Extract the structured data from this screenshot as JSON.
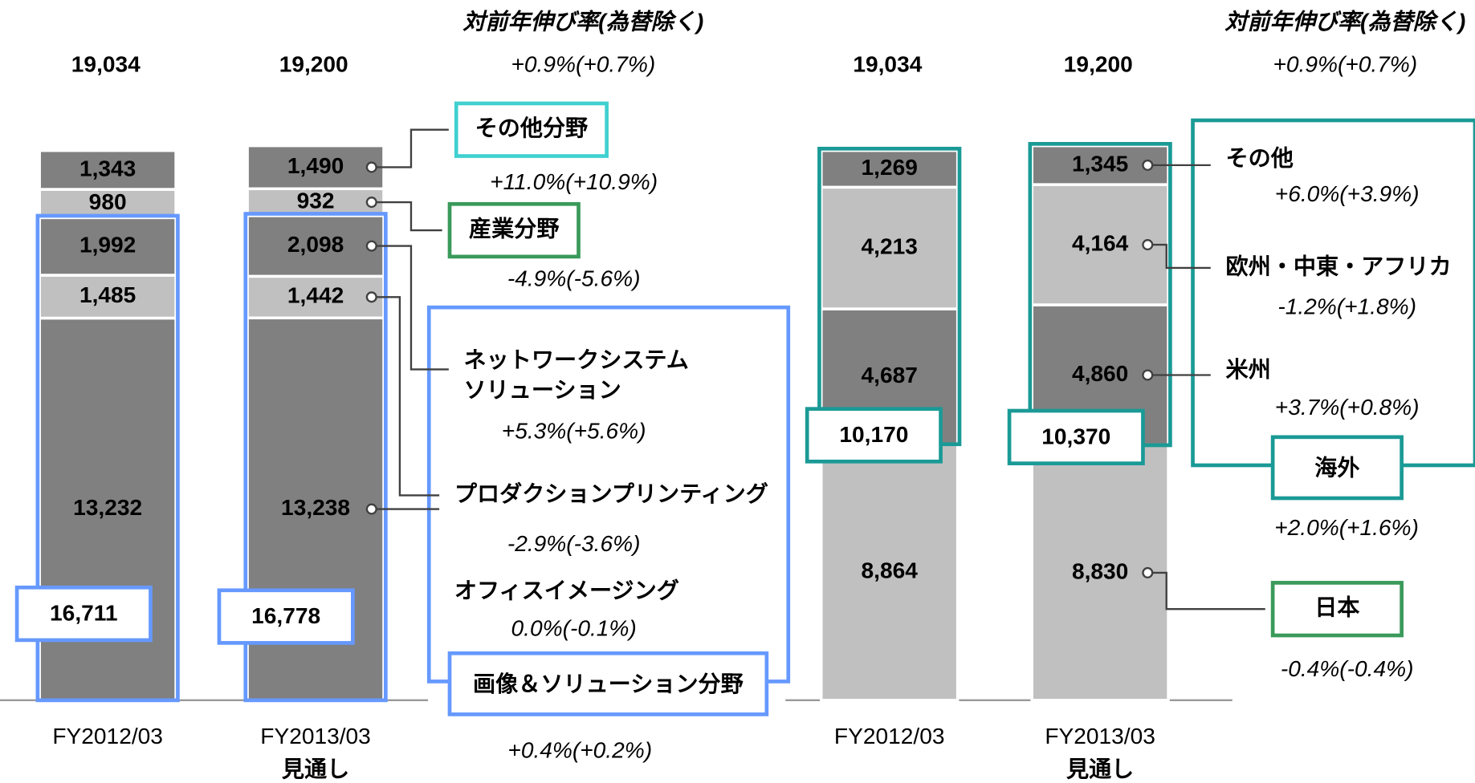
{
  "chart_data": [
    {
      "type": "bar",
      "stacked": true,
      "categories": [
        "FY2012/03",
        "FY2013/03"
      ],
      "forecast_label": "見通し",
      "growth_header": "対前年伸び率(為替除く)",
      "totals": [
        19034,
        19200
      ],
      "total_labels": [
        "19,034",
        "19,200"
      ],
      "total_growth": "+0.9%(+0.7%)",
      "series": [
        {
          "name": "オフィスイメージング",
          "color": "#808080",
          "values": [
            13232,
            13238
          ],
          "value_labels": [
            "13,232",
            "13,238"
          ],
          "growth": "0.0%(-0.1%)",
          "in_group": true
        },
        {
          "name": "プロダクションプリンティング",
          "color": "#c0c0c0",
          "values": [
            1485,
            1442
          ],
          "value_labels": [
            "1,485",
            "1,442"
          ],
          "growth": "-2.9%(-3.6%)",
          "in_group": true
        },
        {
          "name": "ネットワークシステム\nソリューション",
          "color": "#808080",
          "values": [
            1992,
            2098
          ],
          "value_labels": [
            "1,992",
            "2,098"
          ],
          "growth": "+5.3%(+5.6%)",
          "in_group": true
        },
        {
          "name": "産業分野",
          "color": "#c0c0c0",
          "values": [
            980,
            932
          ],
          "value_labels": [
            "980",
            "932"
          ],
          "growth": "-4.9%(-5.6%)",
          "label_box_color": "#3a9a5a"
        },
        {
          "name": "その他分野",
          "color": "#808080",
          "values": [
            1343,
            1490
          ],
          "value_labels": [
            "1,343",
            "1,490"
          ],
          "growth": "+11.0%(+10.9%)",
          "label_box_color": "#40d0d0"
        }
      ],
      "group": {
        "name": "画像＆ソリューション分野",
        "color": "#6699ff",
        "values": [
          16711,
          16778
        ],
        "value_labels": [
          "16,711",
          "16,778"
        ],
        "growth": "+0.4%(+0.2%)"
      }
    },
    {
      "type": "bar",
      "stacked": true,
      "categories": [
        "FY2012/03",
        "FY2013/03"
      ],
      "forecast_label": "見通し",
      "growth_header": "対前年伸び率(為替除く)",
      "totals": [
        19034,
        19200
      ],
      "total_labels": [
        "19,034",
        "19,200"
      ],
      "total_growth": "+0.9%(+0.7%)",
      "series": [
        {
          "name": "日本",
          "color": "#c0c0c0",
          "values": [
            8864,
            8830
          ],
          "value_labels": [
            "8,864",
            "8,830"
          ],
          "growth": "-0.4%(-0.4%)",
          "label_box_color": "#3a9a5a"
        },
        {
          "name": "米州",
          "color": "#808080",
          "values": [
            4687,
            4860
          ],
          "value_labels": [
            "4,687",
            "4,860"
          ],
          "growth": "+3.7%(+0.8%)",
          "in_group": true
        },
        {
          "name": "欧州・中東・アフリカ",
          "color": "#c0c0c0",
          "values": [
            4213,
            4164
          ],
          "value_labels": [
            "4,213",
            "4,164"
          ],
          "growth": "-1.2%(+1.8%)",
          "in_group": true
        },
        {
          "name": "その他",
          "color": "#808080",
          "values": [
            1269,
            1345
          ],
          "value_labels": [
            "1,269",
            "1,345"
          ],
          "growth": "+6.0%(+3.9%)",
          "in_group": true
        }
      ],
      "group": {
        "name": "海外",
        "color": "#1a9a96",
        "values": [
          10170,
          10370
        ],
        "value_labels": [
          "10,170",
          "10,370"
        ],
        "growth": "+2.0%(+1.6%)"
      }
    }
  ]
}
